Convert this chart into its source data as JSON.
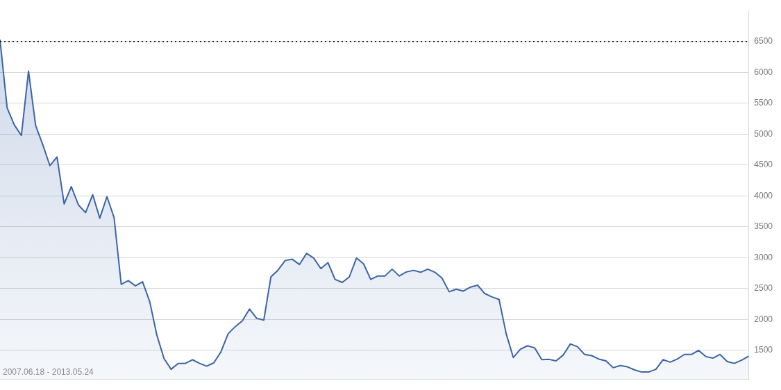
{
  "chart_data": {
    "type": "area",
    "categories": [
      null,
      null,
      null,
      null,
      null,
      null,
      null,
      null,
      null,
      null,
      null,
      null,
      null,
      null,
      null,
      null,
      null,
      null,
      null,
      null,
      null,
      null,
      null,
      null,
      null,
      null,
      null,
      null,
      null,
      null,
      null,
      null,
      null,
      null,
      null,
      null,
      null,
      null,
      null,
      null,
      null,
      null,
      null,
      null,
      null,
      null,
      null,
      null,
      null,
      null,
      null,
      null,
      null,
      null,
      null,
      null,
      null,
      null,
      null,
      null,
      null,
      null,
      null,
      null,
      null,
      null,
      null,
      null,
      null,
      null,
      null,
      null,
      null,
      null,
      null,
      null,
      null,
      null,
      null,
      null,
      null,
      null,
      null,
      null,
      null,
      null,
      null,
      null,
      null,
      null,
      null,
      null,
      null,
      null,
      null,
      null,
      null,
      null,
      null,
      null,
      null,
      null,
      null,
      null,
      null,
      null
    ],
    "series": [
      {
        "color": "#3a64a8",
        "values": [
          6530,
          5425,
          5150,
          4980,
          6020,
          5140,
          4830,
          4490,
          4630,
          3870,
          4150,
          3855,
          3730,
          4020,
          3640,
          3990,
          3650,
          2570,
          2630,
          2545,
          2610,
          2290,
          1750,
          1370,
          1195,
          1290,
          1290,
          1350,
          1290,
          1245,
          1300,
          1480,
          1770,
          1885,
          1980,
          2170,
          2020,
          1990,
          2690,
          2800,
          2955,
          2975,
          2890,
          3070,
          2995,
          2825,
          2920,
          2650,
          2600,
          2690,
          2995,
          2900,
          2650,
          2705,
          2705,
          2815,
          2705,
          2770,
          2795,
          2765,
          2815,
          2765,
          2670,
          2450,
          2490,
          2460,
          2525,
          2555,
          2420,
          2365,
          2325,
          1770,
          1385,
          1520,
          1575,
          1540,
          1350,
          1355,
          1330,
          1425,
          1605,
          1560,
          1435,
          1415,
          1360,
          1330,
          1220,
          1255,
          1235,
          1185,
          1150,
          1150,
          1195,
          1350,
          1310,
          1360,
          1435,
          1435,
          1500,
          1400,
          1375,
          1435,
          1320,
          1290,
          1340,
          1405
        ]
      }
    ],
    "ylim": [
      1030,
      7000
    ],
    "yticks": [
      1500,
      2000,
      2500,
      3000,
      3500,
      4000,
      4500,
      5000,
      5500,
      6000,
      6500
    ],
    "tick_labels": "y",
    "grid": "y",
    "legend": false,
    "marker": "none",
    "ref_lines": [
      {
        "axis": "y",
        "value": 6500,
        "color": "#000000",
        "line_style": "dotted"
      }
    ],
    "annotations": [
      "2007.06.18 - 2013.05.24"
    ]
  }
}
